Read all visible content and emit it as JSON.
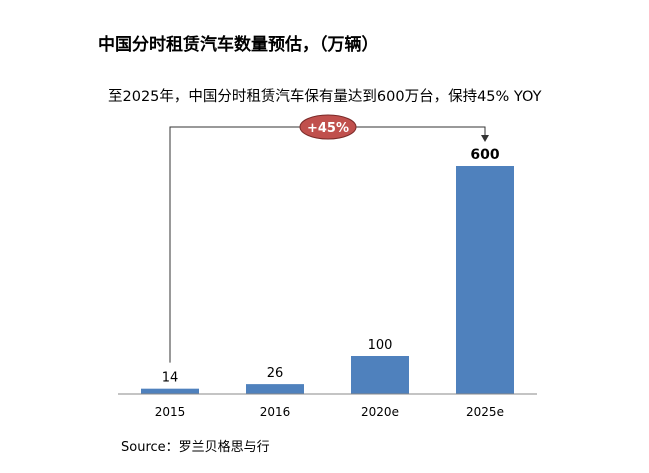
{
  "chart_data": {
    "type": "bar",
    "title": "中国分时租赁汽车数量预估，（万辆）",
    "subtitle": "至2025年，中国分时租赁汽车保有量达到600万台，保持45% YOY",
    "categories": [
      "2015",
      "2016",
      "2020e",
      "2025e"
    ],
    "values": [
      14,
      26,
      100,
      600
    ],
    "value_labels": [
      "14",
      "26",
      "100",
      "600"
    ],
    "highlight_index": 3,
    "ylim": [
      0,
      600
    ],
    "xlabel": "",
    "ylabel": "",
    "grid": false,
    "bar_color": "#4F81BD",
    "annotation": {
      "text": "+45%",
      "from_category": "2015",
      "to_category": "2025e",
      "fill_color": "#C0504D"
    }
  },
  "source": "Source：罗兰贝格思与行"
}
